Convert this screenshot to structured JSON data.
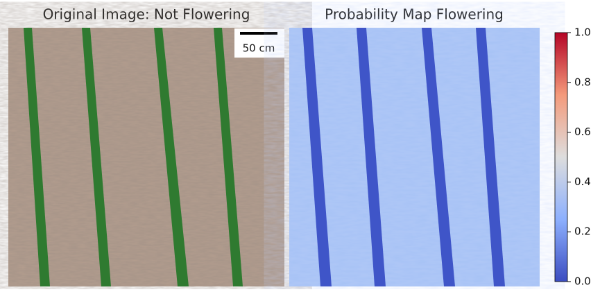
{
  "panels": [
    {
      "title": "Original Image: Not Flowering",
      "scale_bar": "50 cm"
    },
    {
      "title": "Probability Map Flowering"
    }
  ],
  "colorbar": {
    "lim": [
      0,
      1
    ],
    "ticks": [
      {
        "value": 0,
        "label": "0.0"
      },
      0.2,
      0.4,
      0.6,
      0.8,
      {
        "value": 1,
        "label": "1.0"
      }
    ]
  }
}
